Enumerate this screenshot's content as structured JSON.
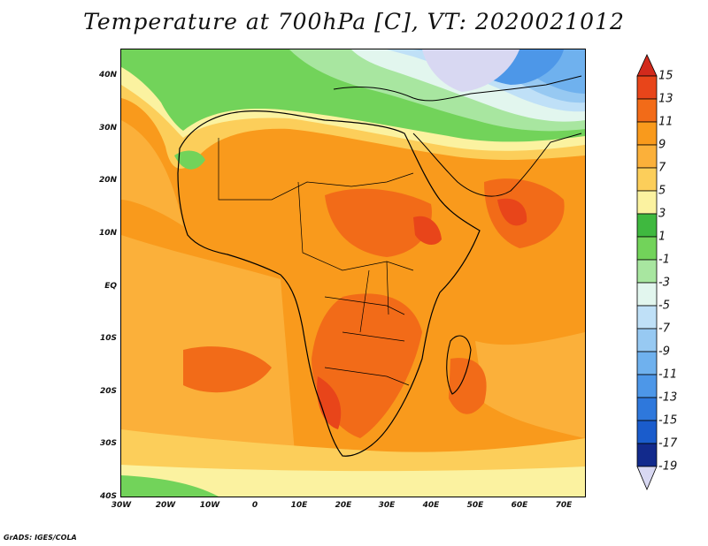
{
  "title": "Temperature at 700hPa [C], VT: 2020021012",
  "footer": "GrADS: IGES/COLA",
  "map": {
    "lat_labels": [
      "40N",
      "30N",
      "20N",
      "10N",
      "EQ",
      "10S",
      "20S",
      "30S",
      "40S"
    ],
    "lon_labels": [
      "30W",
      "20W",
      "10W",
      "0",
      "10E",
      "20E",
      "30E",
      "40E",
      "50E",
      "60E",
      "70E"
    ]
  },
  "colorbar": {
    "labels": [
      "15",
      "13",
      "11",
      "9",
      "7",
      "5",
      "3",
      "1",
      "-1",
      "-3",
      "-5",
      "-7",
      "-9",
      "-11",
      "-13",
      "-15",
      "-17",
      "-19"
    ],
    "colors": {
      "above_15": "#d22a1c",
      "13_15": "#e8451a",
      "11_13": "#f26b18",
      "9_11": "#f99a1c",
      "7_9": "#fbb03a",
      "5_7": "#fcce5a",
      "3_5": "#fbf2a0",
      "1_3": "#3fb83f",
      "-1_1": "#72d35a",
      "-3_-1": "#a8e6a0",
      "-5_-3": "#e2f6ee",
      "-7_-5": "#bfe0f7",
      "-9_-7": "#97c9f2",
      "-11_-9": "#6fb1ee",
      "-13_-11": "#4d97e8",
      "-15_-13": "#2e78dc",
      "-17_-15": "#1a5ccc",
      "-19_-17": "#122a8c",
      "below_-19": "#d8d8f2"
    }
  }
}
